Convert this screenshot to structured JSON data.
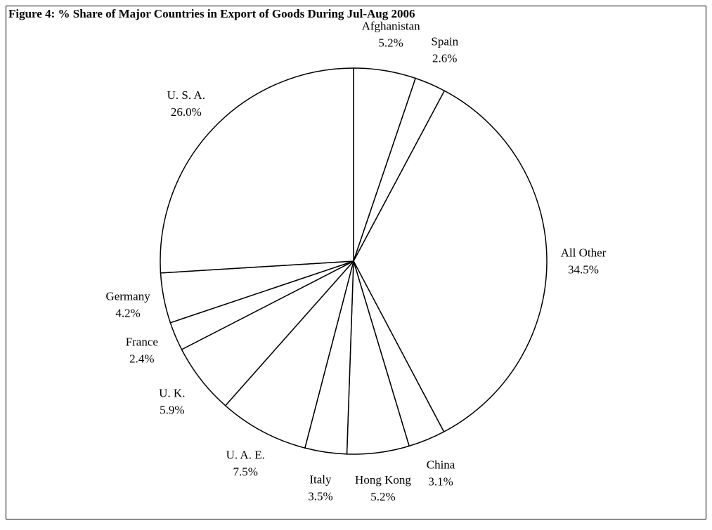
{
  "chart_data": {
    "type": "pie",
    "title": "Figure 4: % Share of Major Countries in Export of Goods During Jul-Aug 2006",
    "categories": [
      "Afghanistan",
      "Spain",
      "All Other",
      "China",
      "Hong Kong",
      "Italy",
      "U. A. E.",
      "U. K.",
      "France",
      "Germany",
      "U. S. A."
    ],
    "values": [
      5.2,
      2.6,
      34.5,
      3.1,
      5.2,
      3.5,
      7.5,
      5.9,
      2.4,
      4.2,
      26.0
    ],
    "value_labels": [
      "5.2%",
      "2.6%",
      "34.5%",
      "3.1%",
      "5.2%",
      "3.5%",
      "7.5%",
      "5.9%",
      "2.4%",
      "4.2%",
      "26.0%"
    ],
    "color": "#ffffff"
  }
}
